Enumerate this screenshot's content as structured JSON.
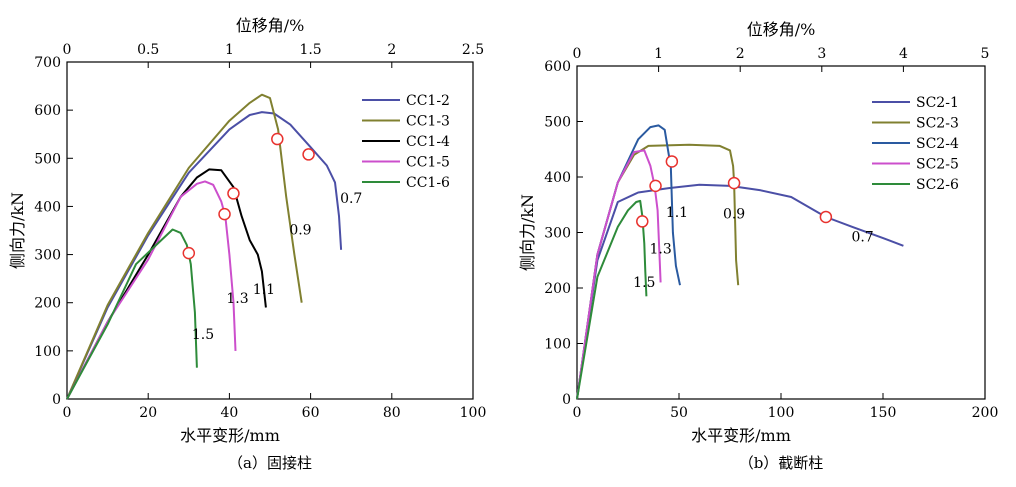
{
  "chart_data": [
    {
      "type": "line",
      "caption": "（a）固接柱",
      "xlabel": "水平变形/mm",
      "ylabel": "侧向力/kN",
      "x2label": "位移角/%",
      "xlim": [
        0,
        100
      ],
      "ylim": [
        0,
        700
      ],
      "x2lim": [
        0,
        2.5
      ],
      "xticks": [
        "0",
        "20",
        "40",
        "60",
        "80",
        "100"
      ],
      "yticks": [
        "0",
        "100",
        "200",
        "300",
        "400",
        "500",
        "600",
        "700"
      ],
      "x2ticks": [
        "0",
        "0.5",
        "1",
        "1.5",
        "2",
        "2.5"
      ],
      "legend_position": "top-right",
      "series": [
        {
          "name": "CC1-2",
          "color": "#4b4fa6",
          "points": [
            [
              0,
              0
            ],
            [
              10,
              190
            ],
            [
              20,
              340
            ],
            [
              30,
              470
            ],
            [
              40,
              560
            ],
            [
              45,
              590
            ],
            [
              48,
              596
            ],
            [
              51,
              593
            ],
            [
              55,
              570
            ],
            [
              60,
              523
            ],
            [
              64,
              485
            ],
            [
              66,
              450
            ],
            [
              67,
              380
            ],
            [
              67.5,
              310
            ]
          ]
        },
        {
          "name": "CC1-3",
          "color": "#808030",
          "points": [
            [
              0,
              0
            ],
            [
              10,
              195
            ],
            [
              20,
              345
            ],
            [
              30,
              480
            ],
            [
              40,
              578
            ],
            [
              45,
              615
            ],
            [
              48,
              632
            ],
            [
              50,
              625
            ],
            [
              52,
              560
            ],
            [
              54,
              420
            ],
            [
              56,
              300
            ],
            [
              57.8,
              200
            ]
          ]
        },
        {
          "name": "CC1-4",
          "color": "#000000",
          "points": [
            [
              0,
              0
            ],
            [
              10,
              160
            ],
            [
              20,
              300
            ],
            [
              28,
              420
            ],
            [
              32,
              460
            ],
            [
              35,
              477
            ],
            [
              38,
              475
            ],
            [
              41,
              440
            ],
            [
              43,
              380
            ],
            [
              45,
              330
            ],
            [
              47,
              300
            ],
            [
              48,
              265
            ],
            [
              49,
              190
            ]
          ]
        },
        {
          "name": "CC1-5",
          "color": "#cc4fcc",
          "points": [
            [
              0,
              0
            ],
            [
              10,
              160
            ],
            [
              20,
              290
            ],
            [
              28,
              420
            ],
            [
              32,
              447
            ],
            [
              34,
              452
            ],
            [
              36,
              445
            ],
            [
              38,
              410
            ],
            [
              39,
              380
            ],
            [
              40,
              300
            ],
            [
              41,
              200
            ],
            [
              41.5,
              100
            ]
          ]
        },
        {
          "name": "CC1-6",
          "color": "#2e8b3a",
          "points": [
            [
              0,
              0
            ],
            [
              10,
              155
            ],
            [
              17,
              280
            ],
            [
              22,
              320
            ],
            [
              26,
              352
            ],
            [
              28,
              345
            ],
            [
              29.5,
              320
            ],
            [
              30.5,
              280
            ],
            [
              31.5,
              180
            ],
            [
              32,
              65
            ]
          ]
        }
      ],
      "markers": [
        {
          "series": "CC1-2",
          "x": 59.5,
          "y": 508
        },
        {
          "series": "CC1-3",
          "x": 51.8,
          "y": 540
        },
        {
          "series": "CC1-4",
          "x": 41,
          "y": 427
        },
        {
          "series": "CC1-5",
          "x": 38.8,
          "y": 384
        },
        {
          "series": "CC1-6",
          "x": 30,
          "y": 303
        }
      ],
      "annotations": [
        {
          "text": "0.7",
          "x": 70,
          "y": 418
        },
        {
          "text": "0.9",
          "x": 57.5,
          "y": 352
        },
        {
          "text": "1.1",
          "x": 48.5,
          "y": 228
        },
        {
          "text": "1.3",
          "x": 42,
          "y": 210
        },
        {
          "text": "1.5",
          "x": 33.5,
          "y": 135
        }
      ]
    },
    {
      "type": "line",
      "caption": "（b）截断柱",
      "xlabel": "水平变形/mm",
      "ylabel": "侧向力/kN",
      "x2label": "位移角/%",
      "xlim": [
        0,
        200
      ],
      "ylim": [
        0,
        600
      ],
      "x2lim": [
        0,
        5
      ],
      "xticks": [
        "0",
        "50",
        "100",
        "150",
        "200"
      ],
      "yticks": [
        "0",
        "100",
        "200",
        "300",
        "400",
        "500",
        "600"
      ],
      "x2ticks": [
        "0",
        "1",
        "2",
        "3",
        "4",
        "5"
      ],
      "legend_position": "top-right",
      "series": [
        {
          "name": "SC2-1",
          "color": "#4b4fa6",
          "points": [
            [
              0,
              0
            ],
            [
              10,
              250
            ],
            [
              20,
              355
            ],
            [
              30,
              372
            ],
            [
              45,
              380
            ],
            [
              60,
              386
            ],
            [
              75,
              384
            ],
            [
              90,
              376
            ],
            [
              105,
              364
            ],
            [
              122,
              328
            ],
            [
              135,
              310
            ],
            [
              150,
              290
            ],
            [
              160,
              276
            ]
          ]
        },
        {
          "name": "SC2-3",
          "color": "#808030",
          "points": [
            [
              0,
              0
            ],
            [
              10,
              260
            ],
            [
              20,
              390
            ],
            [
              28,
              440
            ],
            [
              35,
              456
            ],
            [
              55,
              458
            ],
            [
              70,
              456
            ],
            [
              75,
              448
            ],
            [
              76.5,
              420
            ],
            [
              77,
              390
            ],
            [
              77.5,
              320
            ],
            [
              78,
              250
            ],
            [
              79,
              205
            ]
          ]
        },
        {
          "name": "SC2-4",
          "color": "#2a5aa0",
          "points": [
            [
              0,
              0
            ],
            [
              10,
              260
            ],
            [
              20,
              390
            ],
            [
              30,
              468
            ],
            [
              36,
              490
            ],
            [
              40,
              493
            ],
            [
              43,
              485
            ],
            [
              45,
              440
            ],
            [
              46,
              420
            ],
            [
              47,
              300
            ],
            [
              48.5,
              240
            ],
            [
              50.5,
              205
            ]
          ]
        },
        {
          "name": "SC2-5",
          "color": "#cc4fcc",
          "points": [
            [
              0,
              0
            ],
            [
              10,
              260
            ],
            [
              20,
              390
            ],
            [
              28,
              445
            ],
            [
              33,
              448
            ],
            [
              36,
              420
            ],
            [
              38,
              385
            ],
            [
              39.5,
              340
            ],
            [
              40.5,
              255
            ],
            [
              41,
              210
            ]
          ]
        },
        {
          "name": "SC2-6",
          "color": "#2e8b3a",
          "points": [
            [
              0,
              0
            ],
            [
              10,
              220
            ],
            [
              20,
              310
            ],
            [
              25,
              340
            ],
            [
              29,
              355
            ],
            [
              31,
              357
            ],
            [
              32,
              330
            ],
            [
              33,
              280
            ],
            [
              33.5,
              230
            ],
            [
              34,
              185
            ]
          ]
        }
      ],
      "markers": [
        {
          "series": "SC2-1",
          "x": 122,
          "y": 328
        },
        {
          "series": "SC2-3",
          "x": 77,
          "y": 389
        },
        {
          "series": "SC2-4",
          "x": 46.5,
          "y": 428
        },
        {
          "series": "SC2-5",
          "x": 38.5,
          "y": 384
        },
        {
          "series": "SC2-6",
          "x": 32,
          "y": 320
        }
      ],
      "annotations": [
        {
          "text": "0.7",
          "x": 140,
          "y": 293
        },
        {
          "text": "0.9",
          "x": 77,
          "y": 334
        },
        {
          "text": "1.1",
          "x": 49,
          "y": 337
        },
        {
          "text": "1.3",
          "x": 41,
          "y": 271
        },
        {
          "text": "1.5",
          "x": 33,
          "y": 211
        }
      ]
    }
  ]
}
